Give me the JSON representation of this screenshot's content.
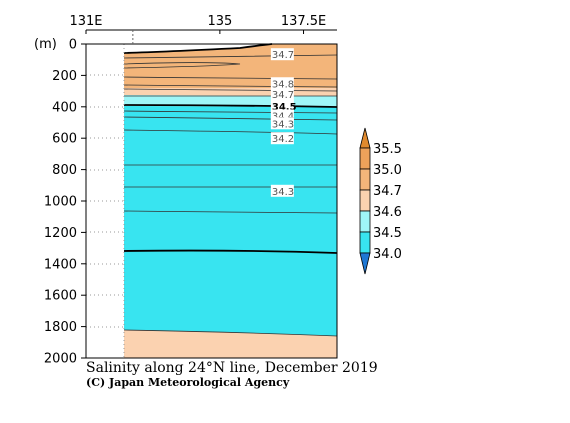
{
  "chart_data": {
    "type": "contour",
    "title": "Salinity along 24°N line, December 2019",
    "credit": "(C) Japan Meteorological Agency",
    "y_unit_label": "(m)",
    "x_ticks": [
      {
        "value": 131,
        "label": "131E"
      },
      {
        "value": 135,
        "label": "135"
      },
      {
        "value": 137.5,
        "label": "137.5E"
      }
    ],
    "x_range": [
      131,
      138.5
    ],
    "y_range": [
      0,
      2000
    ],
    "y_ticks": [
      0,
      200,
      400,
      600,
      800,
      1000,
      1200,
      1400,
      1600,
      1800,
      2000
    ],
    "data_start_lon": 132.4,
    "colors": {
      "below_34_0": "#1f78d4",
      "c34_0_34_5": "#38e4f0",
      "c34_5_34_6": "#9ff6f8",
      "c34_6_34_7": "#fbd2b0",
      "c34_7_35_0": "#f3b57a",
      "c35_0_35_5": "#eda25a",
      "above_35_5": "#e08a2e"
    },
    "colorbar": {
      "levels": [
        "34.0",
        "34.5",
        "34.6",
        "34.7",
        "35.0",
        "35.5"
      ]
    },
    "contour_labels": [
      {
        "text": "34.7",
        "lon": 137.45,
        "depth": 65
      },
      {
        "text": "34.8",
        "lon": 137.45,
        "depth": 250
      },
      {
        "text": "34.7",
        "lon": 137.45,
        "depth": 320
      },
      {
        "text": "34.5",
        "lon": 137.45,
        "depth": 395
      },
      {
        "text": "34.4",
        "lon": 137.45,
        "depth": 455
      },
      {
        "text": "34.3",
        "lon": 137.45,
        "depth": 505
      },
      {
        "text": "34.2",
        "lon": 137.45,
        "depth": 600
      },
      {
        "text": "34.3",
        "lon": 137.45,
        "depth": 935
      }
    ]
  }
}
